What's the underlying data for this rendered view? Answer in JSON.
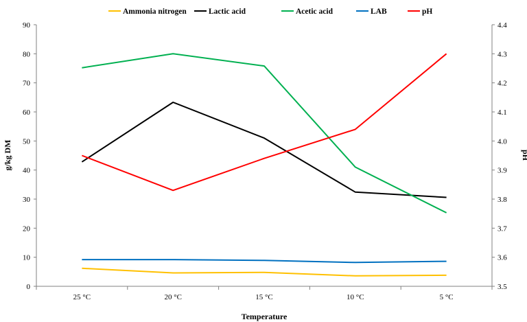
{
  "chart_data": {
    "type": "line",
    "categories": [
      "25 °C",
      "20 °C",
      "15 °C",
      "10 °C",
      "5 °C"
    ],
    "xlabel": "Temperature",
    "ylabel_left": "g/kg DM",
    "ylabel_right": "pH",
    "ylim_left": [
      0,
      90
    ],
    "yticks_left": [
      0,
      10,
      20,
      30,
      40,
      50,
      60,
      70,
      80,
      90
    ],
    "ylim_right": [
      3.5,
      4.4
    ],
    "yticks_right": [
      "3.5",
      "3.6",
      "3.7",
      "3.8",
      "3.9",
      "4.0",
      "4.1",
      "4.2",
      "4.3",
      "4.4"
    ],
    "grid": false,
    "legend_position": "top",
    "series": [
      {
        "name": "Ammonia nitrogen",
        "color": "#FFC000",
        "axis": "left",
        "values": [
          6.2,
          4.6,
          4.8,
          3.6,
          3.8
        ]
      },
      {
        "name": "Lactic acid",
        "color": "#000000",
        "axis": "left",
        "values": [
          42.8,
          63.3,
          51.0,
          32.4,
          30.6
        ]
      },
      {
        "name": "Acetic acid",
        "color": "#00B050",
        "axis": "left",
        "values": [
          75.2,
          80.0,
          75.8,
          41.0,
          25.3
        ]
      },
      {
        "name": "LAB",
        "color": "#0070C0",
        "axis": "left",
        "values": [
          9.2,
          9.2,
          8.9,
          8.2,
          8.6
        ]
      },
      {
        "name": "pH",
        "color": "#FF0000",
        "axis": "right",
        "values": [
          3.95,
          3.83,
          3.94,
          4.04,
          4.3
        ]
      }
    ]
  }
}
